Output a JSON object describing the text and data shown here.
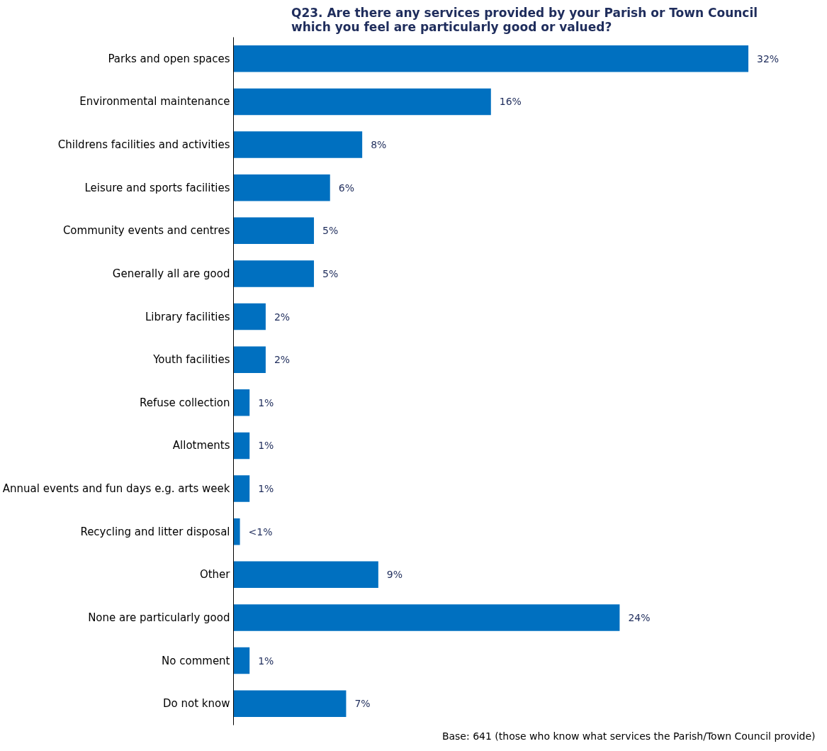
{
  "chart_data": {
    "type": "bar",
    "orientation": "horizontal",
    "title": "Q23. Are there any services provided by your Parish or Town Council\nwhich you feel are particularly good or valued?",
    "categories": [
      "Parks and open spaces",
      "Environmental maintenance",
      "Childrens facilities and activities",
      "Leisure and sports facilities",
      "Community events and centres",
      "Generally all are good",
      "Library facilities",
      "Youth facilities",
      "Refuse collection",
      "Allotments",
      "Annual events and fun days e.g. arts week",
      "Recycling and litter disposal",
      "Other",
      "None are particularly good",
      "No comment",
      "Do not know"
    ],
    "values": [
      32,
      16,
      8,
      6,
      5,
      5,
      2,
      2,
      1,
      1,
      1,
      0.4,
      9,
      24,
      1,
      7
    ],
    "value_labels": [
      "32%",
      "16%",
      "8%",
      "6%",
      "5%",
      "5%",
      "2%",
      "2%",
      "1%",
      "1%",
      "1%",
      "<1%",
      "9%",
      "24%",
      "1%",
      "7%"
    ],
    "color": "#0070c0",
    "tick_labels": "y",
    "grid": false,
    "annotations": [
      "Base: 641 (those who know what services the Parish/Town Council provide)"
    ]
  }
}
